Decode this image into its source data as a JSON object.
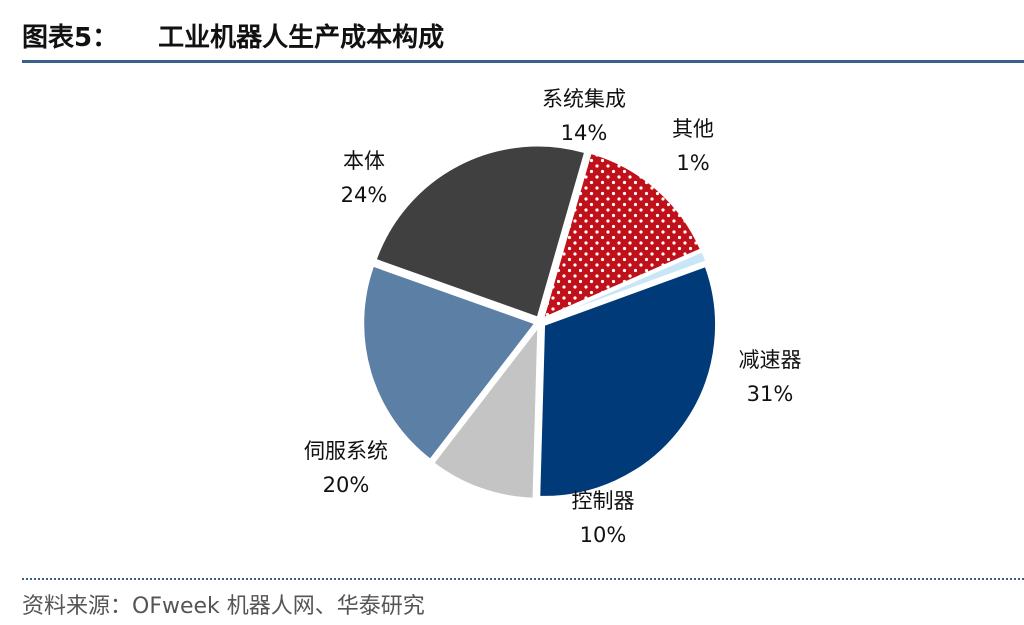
{
  "figure": {
    "label": "图表5：",
    "title": "工业机器人生产成本构成"
  },
  "source_text": "资料来源：OFweek 机器人网、华泰研究",
  "chart_data": {
    "type": "pie",
    "slices": [
      {
        "name": "系统集成",
        "pct_label": "14%",
        "value": 14,
        "color": "#c0101a",
        "pattern": "white-dots"
      },
      {
        "name": "其他",
        "pct_label": "1%",
        "value": 1,
        "color": "#c9e6f6",
        "pattern": "none"
      },
      {
        "name": "减速器",
        "pct_label": "31%",
        "value": 31,
        "color": "#003a78",
        "pattern": "none"
      },
      {
        "name": "控制器",
        "pct_label": "10%",
        "value": 10,
        "color": "#c4c4c4",
        "pattern": "none"
      },
      {
        "name": "伺服系统",
        "pct_label": "20%",
        "value": 20,
        "color": "#5c7fa6",
        "pattern": "none"
      },
      {
        "name": "本体",
        "pct_label": "24%",
        "value": 24,
        "color": "#404040",
        "pattern": "none"
      }
    ]
  }
}
